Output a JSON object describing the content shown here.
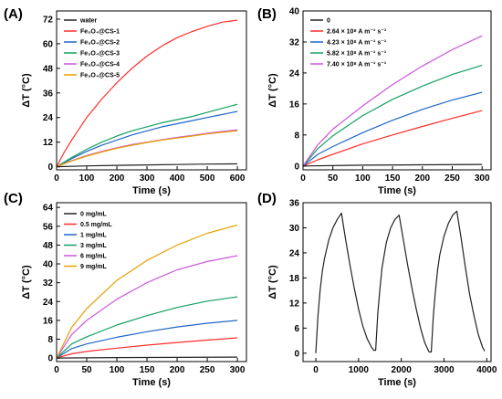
{
  "chart_data": [
    {
      "panel": "(A)",
      "type": "line",
      "xlabel": "Time (s)",
      "ylabel": "ΔT (°C)",
      "xlim": [
        0,
        630
      ],
      "ylim": [
        -1.5,
        76
      ],
      "xticks": [
        0,
        100,
        200,
        300,
        400,
        500,
        600
      ],
      "yticks": [
        0,
        12,
        24,
        36,
        48,
        60,
        72
      ],
      "legend_position": "top-left",
      "series": [
        {
          "name": "water",
          "color": "#222222",
          "x": [
            0,
            100,
            200,
            300,
            400,
            500,
            600
          ],
          "y": [
            0,
            0.4,
            0.7,
            0.9,
            1.1,
            1.3,
            1.4
          ]
        },
        {
          "name": "Fe₃O₄@CS-1",
          "color": "#ff2d2d",
          "x": [
            0,
            25,
            50,
            100,
            150,
            200,
            250,
            300,
            350,
            400,
            450,
            500,
            550,
            600
          ],
          "y": [
            0,
            7,
            13,
            24,
            33,
            41,
            48,
            54,
            59,
            63,
            66,
            68.5,
            70.5,
            71.5
          ]
        },
        {
          "name": "Fe₃O₄@CS-2",
          "color": "#1f66c8",
          "x": [
            0,
            50,
            100,
            150,
            200,
            250,
            300,
            350,
            400,
            450,
            500,
            550,
            600
          ],
          "y": [
            0,
            4,
            7.5,
            10.5,
            13,
            15.5,
            17.5,
            19.5,
            21,
            22.5,
            24,
            25.5,
            27
          ]
        },
        {
          "name": "Fe₃O₄@CS-3",
          "color": "#12a060",
          "x": [
            0,
            50,
            100,
            150,
            200,
            250,
            300,
            350,
            400,
            450,
            500,
            550,
            600
          ],
          "y": [
            0,
            4.5,
            8.5,
            12,
            15,
            17.5,
            19.5,
            21.5,
            23,
            24.5,
            26.5,
            28.5,
            30.5
          ]
        },
        {
          "name": "Fe₃O₄@CS-4",
          "color": "#cc55dd",
          "x": [
            0,
            50,
            100,
            150,
            200,
            250,
            300,
            350,
            400,
            450,
            500,
            550,
            600
          ],
          "y": [
            0,
            3,
            5.5,
            7.5,
            9.3,
            10.8,
            12,
            13.2,
            14.3,
            15.3,
            16.3,
            17.2,
            18
          ]
        },
        {
          "name": "Fe₃O₄@CS-5",
          "color": "#e6a100",
          "x": [
            0,
            50,
            100,
            150,
            200,
            250,
            300,
            350,
            400,
            450,
            500,
            550,
            600
          ],
          "y": [
            0,
            2.8,
            5.2,
            7.2,
            9,
            10.5,
            11.8,
            13,
            14,
            15,
            16,
            16.8,
            17.5
          ]
        }
      ]
    },
    {
      "panel": "(B)",
      "type": "line",
      "xlabel": "Time (s)",
      "ylabel": "ΔT (°C)",
      "xlim": [
        0,
        315
      ],
      "ylim": [
        -1,
        40
      ],
      "xticks": [
        0,
        50,
        100,
        150,
        200,
        250,
        300
      ],
      "yticks": [
        0,
        8,
        16,
        24,
        32,
        40
      ],
      "legend_position": "top-left",
      "series": [
        {
          "name": "0",
          "color": "#222222",
          "x": [
            0,
            100,
            200,
            300
          ],
          "y": [
            0,
            0.2,
            0.3,
            0.4
          ]
        },
        {
          "name": "2.64 × 10⁸ A m⁻¹ s⁻¹",
          "color": "#ff2d2d",
          "x": [
            0,
            25,
            50,
            100,
            150,
            200,
            250,
            300
          ],
          "y": [
            0,
            1.6,
            3,
            5.7,
            8,
            10.2,
            12.3,
            14.3
          ]
        },
        {
          "name": "4.23 × 10⁸ A m⁻¹ s⁻¹",
          "color": "#1f66c8",
          "x": [
            0,
            25,
            50,
            100,
            150,
            200,
            250,
            300
          ],
          "y": [
            0,
            3,
            5,
            8.6,
            11.8,
            14.6,
            17,
            19
          ]
        },
        {
          "name": "5.82 × 10⁸ A m⁻¹ s⁻¹",
          "color": "#12a060",
          "x": [
            0,
            25,
            50,
            100,
            150,
            200,
            250,
            300
          ],
          "y": [
            0,
            4.5,
            7.8,
            13,
            17.2,
            20.6,
            23.6,
            26
          ]
        },
        {
          "name": "7.40 × 10⁸ A m⁻¹ s⁻¹",
          "color": "#cc55dd",
          "x": [
            0,
            25,
            50,
            100,
            150,
            200,
            250,
            300
          ],
          "y": [
            0,
            5.5,
            9.5,
            15.5,
            21,
            25.8,
            30,
            33.6
          ]
        }
      ]
    },
    {
      "panel": "(C)",
      "type": "line",
      "xlabel": "Time (s)",
      "ylabel": "ΔT (°C)",
      "xlim": [
        0,
        315
      ],
      "ylim": [
        -1.5,
        66
      ],
      "xticks": [
        0,
        50,
        100,
        150,
        200,
        250,
        300
      ],
      "yticks": [
        0,
        8,
        16,
        24,
        32,
        40,
        48,
        56,
        64
      ],
      "legend_position": "top-left",
      "series": [
        {
          "name": "0 mg/mL",
          "color": "#222222",
          "x": [
            0,
            100,
            200,
            300
          ],
          "y": [
            0,
            0.2,
            0.3,
            0.4
          ]
        },
        {
          "name": "0.5 mg/mL",
          "color": "#ff2d2d",
          "x": [
            0,
            25,
            50,
            100,
            150,
            200,
            250,
            300
          ],
          "y": [
            0,
            1.8,
            2.8,
            4.2,
            5.5,
            6.6,
            7.6,
            8.6
          ]
        },
        {
          "name": "1 mg/mL",
          "color": "#1f66c8",
          "x": [
            0,
            25,
            50,
            100,
            150,
            200,
            250,
            300
          ],
          "y": [
            0,
            4,
            6,
            8.8,
            11.2,
            13.2,
            14.8,
            16
          ]
        },
        {
          "name": "3 mg/mL",
          "color": "#12a060",
          "x": [
            0,
            25,
            50,
            100,
            150,
            200,
            250,
            300
          ],
          "y": [
            0,
            6,
            9,
            14,
            18,
            21.5,
            24.2,
            26
          ]
        },
        {
          "name": "6 mg/mL",
          "color": "#cc55dd",
          "x": [
            0,
            25,
            50,
            100,
            150,
            200,
            250,
            300
          ],
          "y": [
            0,
            10,
            16,
            25,
            32,
            37.5,
            41,
            43.5
          ]
        },
        {
          "name": "9 mg/mL",
          "color": "#e6a100",
          "x": [
            0,
            25,
            50,
            100,
            150,
            200,
            250,
            300
          ],
          "y": [
            0,
            13,
            21,
            33,
            41.5,
            48,
            53,
            56.5
          ]
        }
      ]
    },
    {
      "panel": "(D)",
      "type": "line",
      "xlabel": "Time (s)",
      "ylabel": "ΔT (°C)",
      "xlim": [
        -300,
        4100
      ],
      "ylim": [
        -2,
        36
      ],
      "xticks": [
        0,
        1000,
        2000,
        3000,
        4000
      ],
      "yticks": [
        0,
        6,
        12,
        18,
        24,
        30,
        36
      ],
      "legend_position": "none",
      "series": [
        {
          "name": "",
          "color": "#222222",
          "x": [
            0,
            50,
            100,
            150,
            200,
            300,
            400,
            500,
            600,
            700,
            800,
            900,
            1000,
            1100,
            1200,
            1300,
            1350,
            1400,
            1450,
            1500,
            1550,
            1650,
            1750,
            1850,
            1950,
            2050,
            2150,
            2250,
            2350,
            2450,
            2550,
            2650,
            2700,
            2750,
            2800,
            2850,
            2900,
            3000,
            3100,
            3200,
            3300,
            3400,
            3500,
            3600,
            3700,
            3800,
            3900,
            3950
          ],
          "y": [
            0,
            9,
            15,
            19.5,
            22.5,
            27,
            30,
            32,
            33.5,
            27,
            21,
            15.5,
            10.5,
            6.5,
            3.5,
            1.5,
            0.7,
            0.7,
            9.5,
            15.5,
            20.5,
            26.5,
            30,
            32,
            33,
            27,
            21,
            15.5,
            10.5,
            6,
            2.5,
            0.3,
            0.3,
            9,
            15,
            20,
            23.5,
            28,
            31,
            33,
            34,
            27.5,
            20.5,
            14,
            9,
            4.5,
            1.5,
            0.5
          ]
        }
      ]
    }
  ]
}
